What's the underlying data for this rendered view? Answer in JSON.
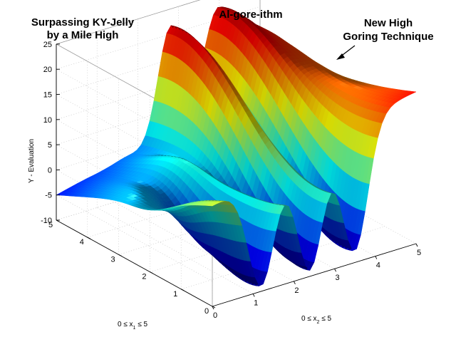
{
  "chart_data": {
    "type": "surface",
    "title": "Al-gore-ithm",
    "annotations": [
      {
        "id": "left",
        "lines": [
          "Surpassing KY-Jelly",
          "by a Mile High"
        ]
      },
      {
        "id": "right",
        "lines": [
          "New High",
          "Goring Technique"
        ]
      }
    ],
    "xlabel": {
      "prefix": "0 ≤ x",
      "sub": "1",
      "suffix": " ≤ 5"
    },
    "ylabel": {
      "prefix": "0 ≤ x",
      "sub": "2",
      "suffix": " ≤ 5"
    },
    "zlabel": "Y - Evaluation",
    "x1_ticks": [
      "0",
      "1",
      "2",
      "3",
      "4",
      "5"
    ],
    "x2_ticks": [
      "0",
      "1",
      "2",
      "3",
      "4",
      "5"
    ],
    "z_ticks": [
      "-10",
      "-5",
      "0",
      "5",
      "10",
      "15",
      "20",
      "25"
    ],
    "x1_range": [
      0,
      5
    ],
    "x2_range": [
      0,
      5
    ],
    "z_range": [
      -10,
      25
    ],
    "colormap": "jet",
    "grid": true,
    "corner_values": {
      "x1_0_x2_0": 10,
      "x1_0_x2_5": 20,
      "x1_5_x2_0": -5,
      "x1_5_x2_5": 5
    },
    "peaks_along_far_edge": [
      {
        "x2": 2.8,
        "y": 22
      },
      {
        "x2": 3.9,
        "y": 21
      },
      {
        "x2": 4.6,
        "y": 16
      }
    ],
    "valleys_along_near_edge": [
      {
        "x2": 1.2,
        "y": -9
      },
      {
        "x2": 2.4,
        "y": -9
      },
      {
        "x2": 3.5,
        "y": -8
      }
    ]
  }
}
